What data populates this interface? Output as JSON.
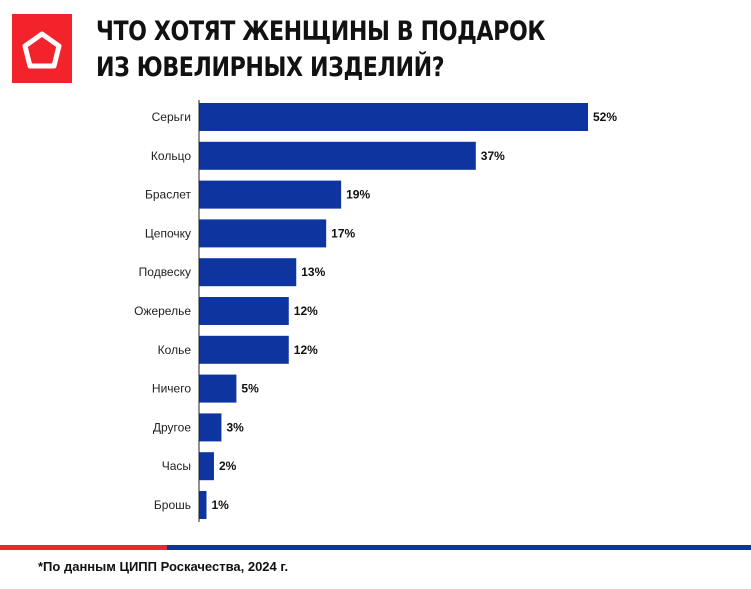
{
  "header": {
    "title_line1": "ЧТО ХОТЯТ ЖЕНЩИНЫ В ПОДАРОК",
    "title_line2": "ИЗ ЮВЕЛИРНЫХ ИЗДЕЛИЙ?"
  },
  "footer": {
    "source": "*По данным ЦИПП Роскачества, 2024 г."
  },
  "colors": {
    "bar": "#0e34a0",
    "accent": "#f3232b"
  },
  "chart_data": {
    "type": "bar",
    "orientation": "horizontal",
    "title": "ЧТО ХОТЯТ ЖЕНЩИНЫ В ПОДАРОК ИЗ ЮВЕЛИРНЫХ ИЗДЕЛИЙ?",
    "categories": [
      "Серьги",
      "Кольцо",
      "Браслет",
      "Цепочку",
      "Подвеску",
      "Ожерелье",
      "Колье",
      "Ничего",
      "Другое",
      "Часы",
      "Брошь"
    ],
    "values": [
      52,
      37,
      19,
      17,
      13,
      12,
      12,
      5,
      3,
      2,
      1
    ],
    "labels": [
      "52%",
      "37%",
      "19%",
      "17%",
      "13%",
      "12%",
      "12%",
      "5%",
      "3%",
      "2%",
      "1%"
    ],
    "unit": "%",
    "xlim": [
      0,
      52
    ],
    "grid": false
  }
}
